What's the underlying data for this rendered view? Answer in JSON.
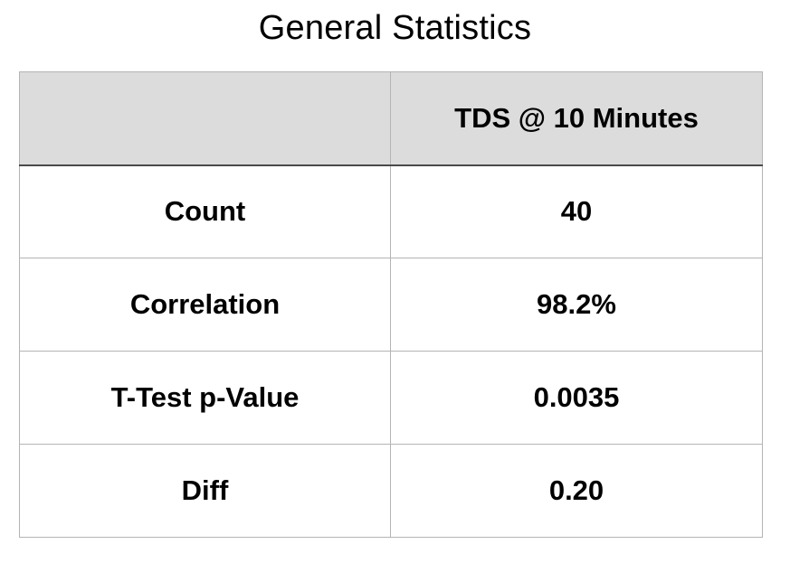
{
  "chart_data": {
    "type": "table",
    "title": "General Statistics",
    "columns": [
      "",
      "TDS @ 10 Minutes"
    ],
    "rows": [
      {
        "label": "Count",
        "value": "40"
      },
      {
        "label": "Correlation",
        "value": "98.2%"
      },
      {
        "label": "T-Test p-Value",
        "value": "0.0035"
      },
      {
        "label": "Diff",
        "value": "0.20"
      }
    ],
    "colors": {
      "header_background": "#dcdcdc",
      "grid": "#b4b4b4",
      "header_rule": "#4a4a4a"
    }
  }
}
